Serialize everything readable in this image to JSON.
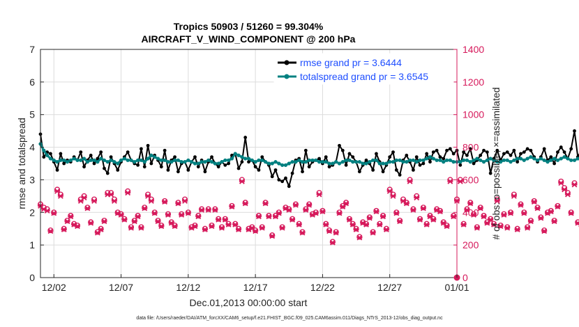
{
  "colors": {
    "rmse": "#000000",
    "spread": "#008080",
    "obs": "#d6195b",
    "legend_text": "#1f4fff",
    "grid": "#dcdcdc",
    "axis": "#262626"
  },
  "chart_data": {
    "type": "line",
    "title": "Tropics 50903 / 51260 = 99.304%",
    "subtitle": "AIRCRAFT_V_WIND_COMPONENT @ 200 hPa",
    "xlabel": "Dec.01,2013 00:00:00 start",
    "ylabel": "rmse and totalspread",
    "y2label": "# of obs: o=possible; ×=assimilated",
    "xlim": [
      0.5,
      31.5
    ],
    "ylim": [
      0,
      7
    ],
    "y2lim": [
      0,
      1400
    ],
    "x_ticks": [
      {
        "value": 1.5,
        "label": "12/02"
      },
      {
        "value": 6.5,
        "label": "12/07"
      },
      {
        "value": 11.5,
        "label": "12/12"
      },
      {
        "value": 16.5,
        "label": "12/17"
      },
      {
        "value": 21.5,
        "label": "12/22"
      },
      {
        "value": 26.5,
        "label": "12/27"
      },
      {
        "value": 31.5,
        "label": "01/01"
      }
    ],
    "y_ticks": [
      "0",
      "1",
      "2",
      "3",
      "4",
      "5",
      "6",
      "7"
    ],
    "y2_ticks": [
      "0",
      "200",
      "400",
      "600",
      "800",
      "1000",
      "1200",
      "1400"
    ],
    "grid": true,
    "legend_position": "top-right",
    "x_start": 0.5,
    "x_step": 0.25,
    "series": [
      {
        "name": "rmse grand pr = 3.6444",
        "axis": "left",
        "marker": "dot",
        "values": [
          4.4,
          3.7,
          3.85,
          3.8,
          3.55,
          3.3,
          3.8,
          3.5,
          3.6,
          3.55,
          3.7,
          3.6,
          3.85,
          3.4,
          3.6,
          3.75,
          3.5,
          3.65,
          3.85,
          3.35,
          3.2,
          3.7,
          3.5,
          3.3,
          3.55,
          3.7,
          3.85,
          3.6,
          3.5,
          3.45,
          3.95,
          3.4,
          4.05,
          3.5,
          3.75,
          3.6,
          3.4,
          3.9,
          3.3,
          3.6,
          3.7,
          3.25,
          3.5,
          3.55,
          3.3,
          3.55,
          3.7,
          3.4,
          3.6,
          3.25,
          3.55,
          3.7,
          3.5,
          3.4,
          3.55,
          3.45,
          3.5,
          3.75,
          3.8,
          3.35,
          3.55,
          4.3,
          3.55,
          3.6,
          3.4,
          3.3,
          3.7,
          3.55,
          3.45,
          3.1,
          3.3,
          3.0,
          2.95,
          3.05,
          2.8,
          3.2,
          3.6,
          3.65,
          3.25,
          3.9,
          3.4,
          3.55,
          3.6,
          3.65,
          3.5,
          3.7,
          3.4,
          3.45,
          3.55,
          4.05,
          3.9,
          3.45,
          3.8,
          3.7,
          3.55,
          3.25,
          3.45,
          3.6,
          3.5,
          3.3,
          3.8,
          3.55,
          3.25,
          3.45,
          3.7,
          3.85,
          3.3,
          3.15,
          3.6,
          3.75,
          3.55,
          3.3,
          3.7,
          3.45,
          3.5,
          3.8,
          3.55,
          3.85,
          3.9,
          3.7,
          3.65,
          3.9,
          3.95,
          3.8,
          3.9,
          3.45,
          3.85,
          3.75,
          3.95,
          3.5,
          3.6,
          3.75,
          3.9,
          3.85,
          3.2,
          3.65,
          3.9,
          3.6,
          3.8,
          3.85,
          3.75,
          3.9,
          3.55,
          3.8,
          3.85,
          3.95,
          3.9,
          3.7,
          3.55,
          3.7,
          3.95,
          3.6,
          3.7,
          3.5,
          3.85,
          4.0,
          3.85,
          3.65,
          3.95,
          4.5,
          3.7,
          3.9,
          3.6,
          3.55,
          4.0,
          3.85,
          4.55,
          3.7,
          3.55,
          3.65,
          3.45,
          3.75,
          3.9,
          4.0,
          4.35,
          4.4,
          3.8,
          3.6,
          3.75,
          3.85,
          3.5,
          3.7,
          3.4,
          3.55,
          3.8,
          3.75,
          3.55,
          3.65,
          3.4,
          3.6,
          3.5,
          3.8,
          3.55,
          3.7,
          3.95,
          3.3,
          4.05,
          4.1,
          3.75,
          4.15,
          3.85,
          3.4,
          3.6,
          3.15,
          3.4,
          3.9,
          4.0,
          3.75,
          4.05,
          3.7,
          3.6,
          4.4
        ]
      },
      {
        "name": "totalspread grand pr = 3.6545",
        "axis": "left",
        "marker": "dot",
        "values": [
          4.1,
          3.9,
          3.75,
          3.65,
          3.6,
          3.55,
          3.6,
          3.6,
          3.55,
          3.6,
          3.65,
          3.6,
          3.6,
          3.65,
          3.55,
          3.6,
          3.6,
          3.55,
          3.65,
          3.6,
          3.55,
          3.6,
          3.55,
          3.5,
          3.6,
          3.65,
          3.6,
          3.6,
          3.55,
          3.6,
          3.6,
          3.55,
          3.65,
          3.75,
          3.7,
          3.65,
          3.6,
          3.6,
          3.55,
          3.55,
          3.6,
          3.6,
          3.55,
          3.55,
          3.6,
          3.55,
          3.5,
          3.5,
          3.55,
          3.55,
          3.6,
          3.55,
          3.5,
          3.5,
          3.55,
          3.6,
          3.6,
          3.65,
          3.8,
          3.75,
          3.7,
          3.65,
          3.65,
          3.6,
          3.55,
          3.6,
          3.6,
          3.55,
          3.5,
          3.5,
          3.55,
          3.5,
          3.45,
          3.45,
          3.5,
          3.55,
          3.55,
          3.6,
          3.55,
          3.55,
          3.6,
          3.6,
          3.6,
          3.55,
          3.55,
          3.55,
          3.5,
          3.5,
          3.55,
          3.5,
          3.55,
          3.6,
          3.6,
          3.55,
          3.55,
          3.55,
          3.5,
          3.5,
          3.55,
          3.6,
          3.6,
          3.5,
          3.5,
          3.5,
          3.55,
          3.55,
          3.6,
          3.6,
          3.55,
          3.55,
          3.6,
          3.6,
          3.55,
          3.6,
          3.6,
          3.65,
          3.7,
          3.65,
          3.6,
          3.6,
          3.55,
          3.6,
          3.6,
          3.55,
          3.55,
          3.55,
          3.6,
          3.6,
          3.55,
          3.6,
          3.65,
          3.6,
          3.55,
          3.6,
          3.65,
          3.6,
          3.55,
          3.55,
          3.6,
          3.6,
          3.55,
          3.6,
          3.65,
          3.65,
          3.6,
          3.65,
          3.7,
          3.65,
          3.6,
          3.65,
          3.6,
          3.55,
          3.6,
          3.65,
          3.6,
          3.65,
          3.7,
          3.65,
          3.6,
          3.6,
          3.65,
          3.7,
          3.75,
          3.7,
          3.8,
          3.7,
          3.75,
          3.7,
          3.6,
          3.55,
          3.6,
          3.65,
          3.6,
          3.6,
          3.65,
          3.6,
          3.55,
          3.6,
          3.65,
          3.6,
          3.6,
          3.55,
          3.6,
          3.6,
          3.55,
          3.6,
          3.65,
          3.7,
          3.6,
          3.6,
          3.55,
          3.6,
          3.6,
          3.65,
          3.7,
          3.7,
          3.75,
          3.65,
          3.6,
          3.65,
          3.7,
          3.75,
          3.7,
          3.65,
          3.7,
          3.85,
          3.75,
          3.8,
          3.8,
          3.7,
          3.75,
          3.8,
          3.8,
          3.75
        ]
      },
      {
        "name": "# of obs possible",
        "axis": "right",
        "marker": "circle",
        "values": [
          450,
          430,
          420,
          290,
          400,
          540,
          510,
          300,
          350,
          380,
          330,
          320,
          480,
          500,
          430,
          340,
          480,
          280,
          300,
          350,
          520,
          520,
          480,
          400,
          390,
          360,
          530,
          310,
          350,
          380,
          310,
          430,
          510,
          480,
          400,
          350,
          320,
          470,
          390,
          340,
          320,
          460,
          390,
          480,
          400,
          310,
          320,
          380,
          420,
          300,
          420,
          320,
          420,
          360,
          310,
          360,
          330,
          440,
          330,
          300,
          600,
          460,
          300,
          310,
          290,
          380,
          310,
          460,
          380,
          260,
          380,
          400,
          310,
          430,
          420,
          360,
          450,
          330,
          280,
          420,
          450,
          390,
          400,
          520,
          410,
          330,
          290,
          220,
          280,
          400,
          440,
          460,
          360,
          330,
          300,
          250,
          340,
          330,
          370,
          280,
          410,
          330,
          380,
          300,
          540,
          510,
          400,
          350,
          480,
          460,
          600,
          420,
          500,
          360,
          430,
          330,
          380,
          360,
          420,
          410,
          340,
          320,
          600,
          380,
          480,
          600,
          330,
          420,
          460,
          390,
          310,
          430,
          380,
          340,
          360,
          330,
          480,
          320,
          390,
          310,
          400,
          510,
          300,
          450,
          400,
          310,
          350,
          470,
          430,
          370,
          290,
          400,
          410,
          350,
          440,
          590,
          550,
          520,
          400,
          580,
          340,
          330,
          370,
          320,
          410,
          330,
          340,
          310,
          380,
          350,
          460,
          320,
          340,
          650,
          300,
          360,
          600,
          430,
          420,
          380,
          340,
          310,
          400,
          630,
          300,
          480,
          420,
          380,
          340,
          350,
          380,
          420,
          500,
          390,
          320,
          440,
          470,
          330,
          300,
          350,
          370,
          360,
          300,
          450,
          380,
          310,
          340,
          410,
          440,
          380,
          310,
          320,
          430,
          410,
          360,
          300,
          340,
          580,
          370,
          420,
          300,
          360,
          540,
          460,
          350,
          380,
          330,
          300,
          400,
          420
        ]
      },
      {
        "name": "# of obs assimilated",
        "axis": "right",
        "marker": "cross",
        "values": [
          440,
          420,
          410,
          285,
          395,
          530,
          500,
          295,
          345,
          375,
          325,
          315,
          470,
          490,
          425,
          335,
          470,
          275,
          295,
          345,
          510,
          510,
          470,
          395,
          385,
          355,
          520,
          305,
          345,
          375,
          305,
          425,
          500,
          470,
          395,
          345,
          315,
          465,
          385,
          335,
          315,
          455,
          385,
          470,
          395,
          305,
          315,
          375,
          415,
          295,
          415,
          315,
          415,
          355,
          305,
          355,
          325,
          435,
          325,
          295,
          590,
          455,
          295,
          305,
          285,
          375,
          305,
          455,
          375,
          255,
          375,
          395,
          305,
          425,
          415,
          355,
          445,
          325,
          275,
          415,
          445,
          385,
          395,
          510,
          405,
          325,
          285,
          215,
          275,
          395,
          435,
          455,
          355,
          325,
          295,
          245,
          335,
          325,
          365,
          275,
          405,
          325,
          375,
          295,
          530,
          500,
          395,
          345,
          470,
          455,
          590,
          415,
          490,
          355,
          425,
          325,
          375,
          355,
          415,
          405,
          335,
          315,
          590,
          375,
          470,
          590,
          325,
          415,
          455,
          385,
          305,
          425,
          375,
          335,
          355,
          325,
          470,
          315,
          385,
          305,
          395,
          500,
          295,
          445,
          395,
          305,
          345,
          465,
          425,
          365,
          285,
          395,
          405,
          345,
          435,
          580,
          540,
          510,
          395,
          570,
          335,
          325,
          365,
          315,
          405,
          325,
          335,
          305,
          375,
          345,
          455,
          315,
          335,
          640,
          295,
          355,
          590,
          425,
          415,
          375,
          335,
          305,
          395,
          620,
          295,
          470,
          415,
          375,
          335,
          345,
          375,
          415,
          490,
          385,
          315,
          435,
          465,
          325,
          295,
          345,
          365,
          355,
          295,
          445,
          375,
          305,
          335,
          405,
          435,
          375,
          305,
          315,
          425,
          405,
          355,
          295,
          335,
          570,
          365,
          415,
          295,
          355,
          530,
          455,
          345,
          375,
          325,
          295,
          395,
          415
        ]
      }
    ],
    "annotations": [
      {
        "label": "0",
        "x": 31.5,
        "y2": 0,
        "marker": "circle"
      }
    ],
    "footnote": "data file: /Users/raeder/DAI/ATM_forcXX/CAM6_setup/f.e21.FHIST_BGC.f09_025.CAM6assim.011/Diags_NTrS_2013-12/obs_diag_output.nc"
  }
}
